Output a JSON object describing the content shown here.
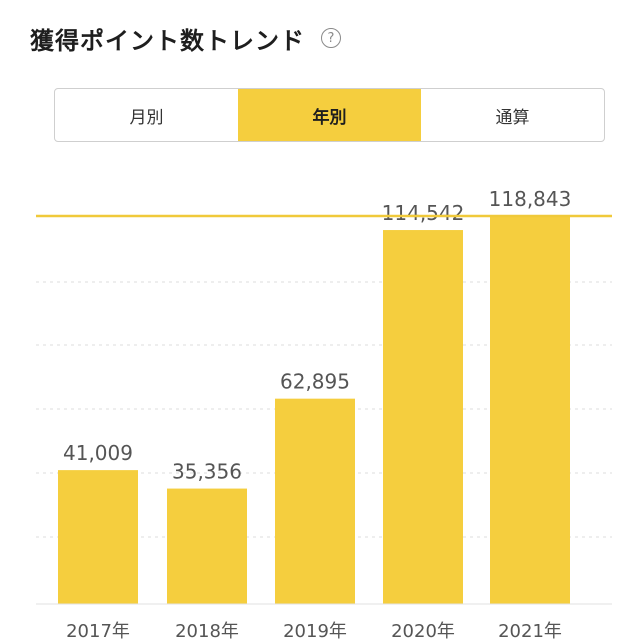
{
  "header": {
    "title": "獲得ポイント数トレンド",
    "help_icon": "question-circle-icon"
  },
  "tabs": [
    {
      "label": "月別",
      "active": false
    },
    {
      "label": "年別",
      "active": true
    },
    {
      "label": "通算",
      "active": false
    }
  ],
  "colors": {
    "accent": "#f5ce3e",
    "bar": "#f5ce3e",
    "max_line": "#f0c93a",
    "grid": "#dddddd",
    "value_text": "#555555",
    "tick_text": "#555555"
  },
  "chart_data": {
    "type": "bar",
    "categories": [
      "2017年",
      "2018年",
      "2019年",
      "2020年",
      "2021年"
    ],
    "values": [
      41009,
      35356,
      62895,
      114542,
      118843
    ],
    "value_labels": [
      "41,009",
      "35,356",
      "62,895",
      "114,542",
      "118,843"
    ],
    "ylim": [
      0,
      118843
    ],
    "reference_line": 118843,
    "grid": true
  }
}
